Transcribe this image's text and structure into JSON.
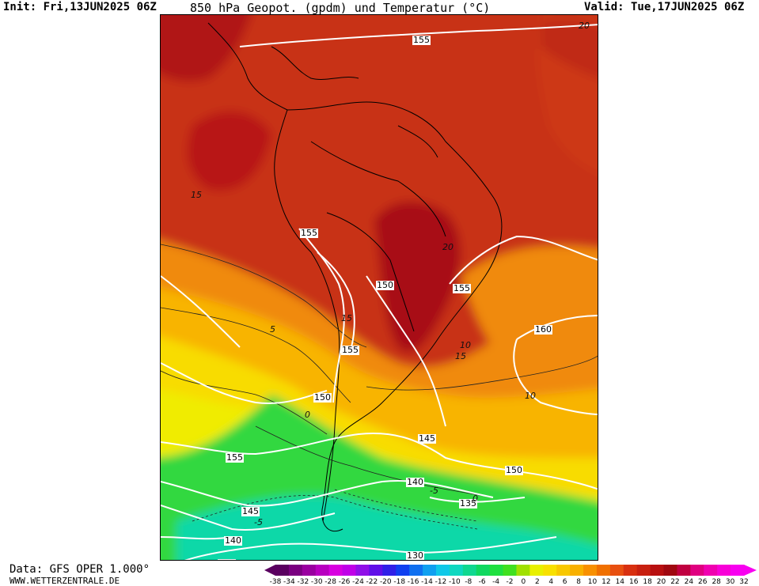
{
  "header": {
    "init": "Init: Fri,13JUN2025 06Z",
    "title": "850 hPa Geopot. (gpdm) und Temperatur (°C)",
    "valid": "Valid: Tue,17JUN2025 06Z"
  },
  "footer": {
    "data_source": "Data: GFS OPER 1.000°",
    "website": "WWW.WETTERZENTRALE.DE"
  },
  "map": {
    "geopotential_labels": [
      {
        "text": "155"
      },
      {
        "text": "155"
      },
      {
        "text": "150"
      },
      {
        "text": "155"
      },
      {
        "text": "160"
      },
      {
        "text": "155"
      },
      {
        "text": "150"
      },
      {
        "text": "145"
      },
      {
        "text": "155"
      },
      {
        "text": "150"
      },
      {
        "text": "140"
      },
      {
        "text": "135"
      },
      {
        "text": "145"
      },
      {
        "text": "140"
      },
      {
        "text": "130"
      },
      {
        "text": "135"
      }
    ],
    "temperature_labels": [
      {
        "text": "20"
      },
      {
        "text": "15"
      },
      {
        "text": "20"
      },
      {
        "text": "5"
      },
      {
        "text": "15"
      },
      {
        "text": "10"
      },
      {
        "text": "15"
      },
      {
        "text": "10"
      },
      {
        "text": "0"
      },
      {
        "text": "-5"
      },
      {
        "text": "-5"
      },
      {
        "text": "0"
      }
    ]
  },
  "legend": {
    "ticks": [
      "-38",
      "-34",
      "-32",
      "-30",
      "-28",
      "-26",
      "-24",
      "-22",
      "-20",
      "-18",
      "-16",
      "-14",
      "-12",
      "-10",
      "-8",
      "-6",
      "-4",
      "-2",
      "0",
      "2",
      "4",
      "6",
      "8",
      "10",
      "12",
      "14",
      "16",
      "18",
      "20",
      "22",
      "24",
      "26",
      "28",
      "30",
      "32"
    ],
    "colors": [
      "#5a0060",
      "#7a0080",
      "#9a00a0",
      "#b800c0",
      "#d800e0",
      "#c000e8",
      "#9010e8",
      "#6010e8",
      "#3020e8",
      "#1040f0",
      "#1070f0",
      "#10a0f0",
      "#10c8e8",
      "#10d8c0",
      "#10d890",
      "#10d860",
      "#20e040",
      "#40e020",
      "#a0e000",
      "#e8f000",
      "#f8e000",
      "#f8c800",
      "#f8b000",
      "#f89000",
      "#f07000",
      "#e85010",
      "#d83010",
      "#c82010",
      "#b81010",
      "#a00810",
      "#c00040",
      "#e00080",
      "#f000b0",
      "#f800d8",
      "#f800f0"
    ]
  }
}
